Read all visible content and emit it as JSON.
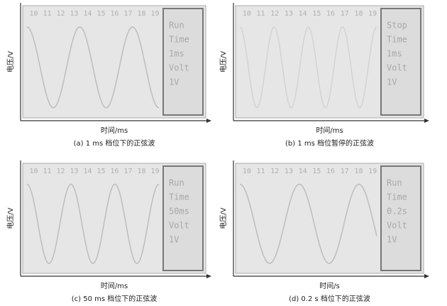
{
  "panels": [
    {
      "ylabel": "电压/V",
      "scale": [
        "10",
        "11",
        "12",
        "13",
        "14",
        "15",
        "16",
        "17",
        "18",
        "19"
      ],
      "status": [
        "Run",
        "Time",
        "1ms",
        "Volt",
        "1V"
      ],
      "xlabel": "时间/ms",
      "caption": "(a) 1 ms 档位下的正弦波"
    },
    {
      "ylabel": "电压/V",
      "scale": [
        "10",
        "11",
        "12",
        "13",
        "14",
        "15",
        "16",
        "17",
        "18",
        "19"
      ],
      "status": [
        "Stop",
        "Time",
        "1ms",
        "Volt",
        "1V"
      ],
      "xlabel": "时间/ms",
      "caption": "(b) 1 ms 档位暂停的正弦波"
    },
    {
      "ylabel": "电压/V",
      "scale": [
        "10",
        "11",
        "12",
        "13",
        "14",
        "15",
        "16",
        "17",
        "18",
        "19"
      ],
      "status": [
        "Run",
        "Time",
        "50ms",
        "Volt",
        "1V"
      ],
      "xlabel": "时间/ms",
      "caption": "(c) 50 ms 档位下的正弦波"
    },
    {
      "ylabel": "电压/V",
      "scale": [
        "10",
        "11",
        "12",
        "13",
        "14",
        "15",
        "16",
        "17",
        "18",
        "19"
      ],
      "status": [
        "Run",
        "Time",
        "0.2s",
        "Volt",
        "1V"
      ],
      "xlabel": "时间/s",
      "caption": "(d) 0.2 s 档位下的正弦波"
    }
  ]
}
